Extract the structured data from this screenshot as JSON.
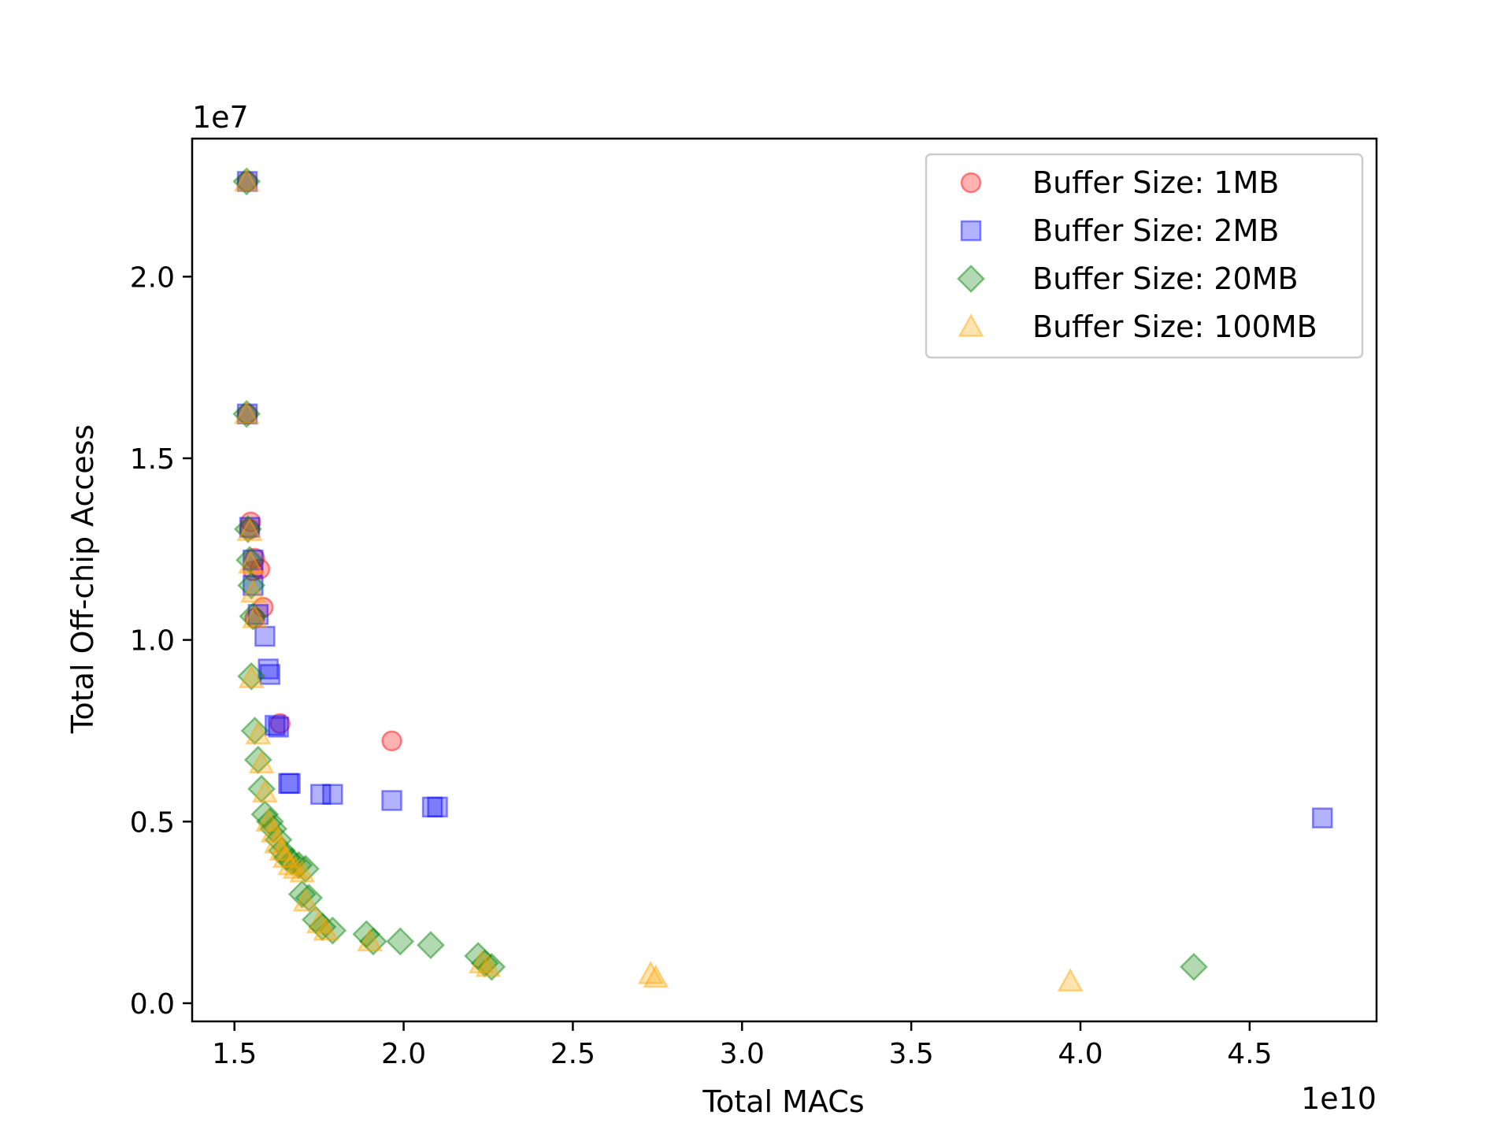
{
  "chart_data": {
    "type": "scatter",
    "title": "",
    "xlabel": "Total MACs",
    "ylabel": "Total Off-chip Access",
    "x_multiplier": "1e10",
    "y_multiplier": "1e7",
    "xlim": [
      1.375,
      4.875
    ],
    "ylim": [
      -0.05,
      2.38
    ],
    "x_ticks": [
      1.5,
      2.0,
      2.5,
      3.0,
      3.5,
      4.0,
      4.5
    ],
    "x_tick_labels": [
      "1.5",
      "2.0",
      "2.5",
      "3.0",
      "3.5",
      "4.0",
      "4.5"
    ],
    "y_ticks": [
      0.0,
      0.5,
      1.0,
      1.5,
      2.0
    ],
    "y_tick_labels": [
      "0.0",
      "0.5",
      "1.0",
      "1.5",
      "2.0"
    ],
    "grid": false,
    "legend_position": "top-right",
    "series": [
      {
        "name": "Buffer Size: 1MB",
        "marker": "circle",
        "color": "#ff0000",
        "points": [
          [
            1.538,
            2.262
          ],
          [
            1.538,
            1.622
          ],
          [
            1.548,
            1.325
          ],
          [
            1.56,
            1.225
          ],
          [
            1.575,
            1.195
          ],
          [
            1.585,
            1.09
          ],
          [
            1.56,
            1.06
          ],
          [
            1.635,
            0.77
          ],
          [
            1.965,
            0.722
          ],
          [
            1.545,
            1.305
          ],
          [
            1.555,
            1.19
          ]
        ]
      },
      {
        "name": "Buffer Size: 2MB",
        "marker": "square",
        "color": "#0000ff",
        "points": [
          [
            1.538,
            2.262
          ],
          [
            1.538,
            1.622
          ],
          [
            1.545,
            1.31
          ],
          [
            1.555,
            1.22
          ],
          [
            1.555,
            1.15
          ],
          [
            1.57,
            1.07
          ],
          [
            1.59,
            1.01
          ],
          [
            1.6,
            0.92
          ],
          [
            1.605,
            0.905
          ],
          [
            1.62,
            0.765
          ],
          [
            1.63,
            0.76
          ],
          [
            1.66,
            0.605
          ],
          [
            1.665,
            0.605
          ],
          [
            1.755,
            0.575
          ],
          [
            1.79,
            0.575
          ],
          [
            1.965,
            0.558
          ],
          [
            2.085,
            0.54
          ],
          [
            2.1,
            0.54
          ],
          [
            4.715,
            0.51
          ]
        ]
      },
      {
        "name": "Buffer Size: 20MB",
        "marker": "diamond",
        "color": "#008000",
        "points": [
          [
            1.536,
            2.262
          ],
          [
            1.536,
            1.622
          ],
          [
            1.54,
            1.305
          ],
          [
            1.545,
            1.22
          ],
          [
            1.55,
            1.15
          ],
          [
            1.555,
            1.065
          ],
          [
            1.55,
            0.9
          ],
          [
            1.56,
            0.75
          ],
          [
            1.57,
            0.67
          ],
          [
            1.58,
            0.59
          ],
          [
            1.59,
            0.52
          ],
          [
            1.605,
            0.5
          ],
          [
            1.615,
            0.48
          ],
          [
            1.63,
            0.45
          ],
          [
            1.64,
            0.42
          ],
          [
            1.655,
            0.4
          ],
          [
            1.67,
            0.39
          ],
          [
            1.69,
            0.38
          ],
          [
            1.71,
            0.37
          ],
          [
            1.7,
            0.3
          ],
          [
            1.72,
            0.29
          ],
          [
            1.74,
            0.23
          ],
          [
            1.76,
            0.21
          ],
          [
            1.79,
            0.2
          ],
          [
            1.89,
            0.19
          ],
          [
            1.91,
            0.17
          ],
          [
            1.99,
            0.17
          ],
          [
            2.08,
            0.16
          ],
          [
            2.22,
            0.13
          ],
          [
            2.24,
            0.11
          ],
          [
            2.26,
            0.1
          ],
          [
            4.335,
            0.1
          ]
        ]
      },
      {
        "name": "Buffer Size: 100MB",
        "marker": "triangle",
        "color": "#ffa500",
        "points": [
          [
            1.536,
            2.262
          ],
          [
            1.536,
            1.622
          ],
          [
            1.545,
            1.3
          ],
          [
            1.548,
            1.21
          ],
          [
            1.555,
            1.13
          ],
          [
            1.56,
            1.06
          ],
          [
            1.55,
            0.895
          ],
          [
            1.57,
            0.74
          ],
          [
            1.58,
            0.66
          ],
          [
            1.59,
            0.58
          ],
          [
            1.6,
            0.5
          ],
          [
            1.615,
            0.47
          ],
          [
            1.625,
            0.44
          ],
          [
            1.64,
            0.42
          ],
          [
            1.65,
            0.4
          ],
          [
            1.665,
            0.38
          ],
          [
            1.68,
            0.37
          ],
          [
            1.7,
            0.36
          ],
          [
            1.71,
            0.28
          ],
          [
            1.75,
            0.22
          ],
          [
            1.77,
            0.2
          ],
          [
            1.9,
            0.17
          ],
          [
            2.23,
            0.11
          ],
          [
            2.25,
            0.1
          ],
          [
            2.73,
            0.08
          ],
          [
            2.745,
            0.07
          ],
          [
            3.97,
            0.06
          ]
        ]
      }
    ]
  }
}
